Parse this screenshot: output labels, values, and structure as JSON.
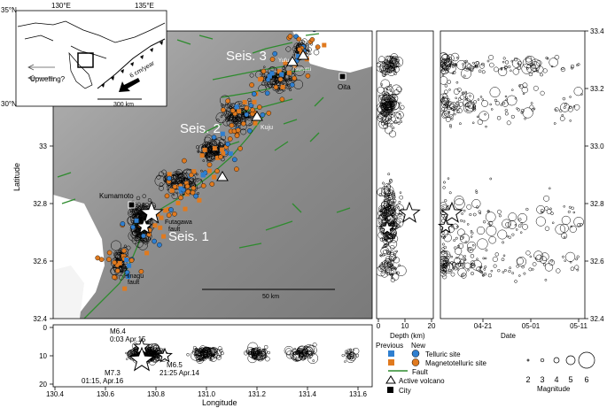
{
  "main_map": {
    "ylabel": "Latitude",
    "yticks": [
      "32.4",
      "32.6",
      "32.8",
      "33",
      "33.2",
      "33.4"
    ],
    "place_labels": {
      "kumamoto": "Kumamoto",
      "oita": "Oita",
      "futagawa_fault": [
        "Futagawa",
        "fault"
      ],
      "hinagu_fault": [
        "Hinagu",
        "fault"
      ],
      "kuju": "Kuju",
      "yufu": "Yufu",
      "tsurumi": "Tsurumi"
    },
    "cluster_labels": {
      "seis1": "Seis. 1",
      "seis2": "Seis. 2",
      "seis3": "Seis. 3"
    },
    "scale_bar": "50 km"
  },
  "inset_map": {
    "lat_labels": [
      "35°N",
      "30°N"
    ],
    "lon_labels": [
      "130°E",
      "135°E"
    ],
    "upwelling": "Upwelling?",
    "plate_rate": "6 cm/year",
    "scale": "300 km"
  },
  "depth_panel": {
    "xlabel": "Depth (km)",
    "xticks": [
      "0",
      "10",
      "20"
    ]
  },
  "time_panel": {
    "xlabel": "Date",
    "xticks": [
      "04-21",
      "05-01",
      "05-11"
    ],
    "yticks": [
      "32.4",
      "32.6",
      "32.8",
      "33.0",
      "33.2",
      "33.4"
    ]
  },
  "cross_section": {
    "xlabel": "Longitude",
    "xticks": [
      "130.4",
      "130.6",
      "130.8",
      "131.0",
      "131.2",
      "131.4",
      "131.6"
    ],
    "yticks": [
      "0",
      "10",
      "20"
    ],
    "event_labels": {
      "m64": [
        "M6.4",
        "0:03 Apr.15"
      ],
      "m73": [
        "M7.3",
        "01:15, Apr.16"
      ],
      "m65": [
        "M6.5",
        "21:25 Apr.14"
      ]
    }
  },
  "legend": {
    "previous": "Previous",
    "new": "New",
    "telluric": "Telluric site",
    "magnetotelluric": "Magnetotelluric site",
    "fault": "Fault",
    "volcano": "Active volcano",
    "city": "City",
    "magnitude_title": "Magnitude",
    "magnitudes": [
      "2",
      "3",
      "4",
      "5",
      "6"
    ]
  },
  "colors": {
    "telluric_blue": "#2f7fd0",
    "mt_orange": "#e07a1f",
    "fault_green": "#2e8b2e",
    "relief_gray": "#9a9a9a"
  }
}
